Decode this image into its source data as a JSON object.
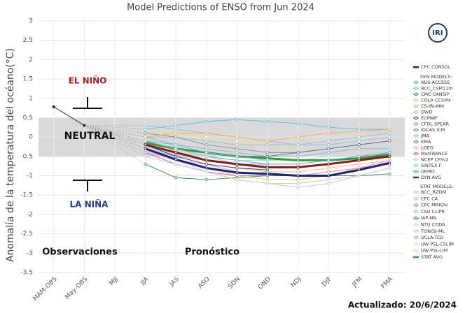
{
  "chart_data": {
    "type": "line",
    "title": "Model Predictions of ENSO from Jun 2024",
    "y_label": "Anomalía  de la temperatura del océano(°C)",
    "categories": [
      "MAM-OBS",
      "May-OBS",
      "MJJ",
      "JJA",
      "JAS",
      "ASO",
      "SON",
      "OND",
      "NDJ",
      "DJF",
      "JFM",
      "FMA"
    ],
    "ylim": [
      -3.5,
      3
    ],
    "yticks": [
      -3.5,
      -3,
      -2.5,
      -2,
      -1.5,
      -1,
      -0.5,
      0,
      0.5,
      1,
      1.5,
      2,
      2.5,
      3
    ],
    "grid": true,
    "neutral_band": [
      -0.5,
      0.5
    ],
    "observed": {
      "color": "#333333",
      "values": [
        0.78,
        0.3,
        null,
        null,
        null,
        null,
        null,
        null,
        null,
        null,
        null,
        null
      ]
    },
    "series": [
      {
        "name": "CPC CONSOL",
        "color": "#1a237e",
        "values": [
          null,
          null,
          null,
          -0.3,
          -0.58,
          -0.8,
          -0.92,
          -0.95,
          -1.0,
          -1.0,
          -0.85,
          -0.67
        ]
      }
    ],
    "dyn_models": {
      "label": "DYN MODELS:",
      "series": [
        {
          "name": "AUS-ACCESS",
          "color": "#5b9bd5",
          "values": [
            null,
            null,
            null,
            -0.1,
            -0.3,
            -0.5,
            -0.6,
            -0.7,
            -0.7,
            -0.6,
            -0.5,
            -0.4
          ]
        },
        {
          "name": "BCC_CSM11m",
          "color": "#4ec3e0",
          "values": [
            null,
            null,
            null,
            0.2,
            0.3,
            0.4,
            0.45,
            0.4,
            0.35,
            0.25,
            0.2,
            0.2
          ]
        },
        {
          "name": "CMC CANSIP",
          "color": "#2e7d32",
          "values": [
            null,
            null,
            null,
            -0.2,
            -0.4,
            -0.6,
            -0.7,
            -0.8,
            -0.8,
            -0.7,
            -0.6,
            -0.5
          ]
        },
        {
          "name": "COLA CCSM4",
          "color": "#f4c542",
          "values": [
            null,
            null,
            null,
            -0.3,
            -0.6,
            -0.8,
            -1.0,
            -1.1,
            -1.1,
            -1.0,
            -0.8,
            -0.6
          ]
        },
        {
          "name": "CS-IRI-MM",
          "color": "#f48fb1",
          "values": [
            null,
            null,
            null,
            -0.2,
            -0.5,
            -0.7,
            -0.9,
            -1.0,
            -1.0,
            -0.9,
            -0.8,
            -0.6
          ]
        },
        {
          "name": "DWD",
          "color": "#aab7c4",
          "values": [
            null,
            null,
            null,
            0.0,
            0.0,
            -0.1,
            -0.2,
            -0.2,
            -0.2,
            -0.1,
            0.0,
            0.1
          ]
        },
        {
          "name": "ECMWF",
          "color": "#1f3a93",
          "values": [
            null,
            null,
            null,
            -0.2,
            -0.5,
            -0.7,
            -0.8,
            -0.85,
            null,
            null,
            null,
            null
          ]
        },
        {
          "name": "CFDL SPEAR",
          "color": "#7f8c8d",
          "values": [
            null,
            null,
            null,
            0.1,
            0.0,
            -0.2,
            -0.3,
            -0.4,
            -0.4,
            -0.3,
            -0.2,
            -0.1
          ]
        },
        {
          "name": "IOCAS ICM",
          "color": "#5d6d7e",
          "values": [
            null,
            null,
            null,
            -0.1,
            -0.3,
            -0.4,
            -0.5,
            -0.5,
            -0.4,
            -0.3,
            -0.2,
            -0.1
          ]
        },
        {
          "name": "JMA",
          "color": "#6cc3d5",
          "values": [
            null,
            null,
            null,
            0.0,
            -0.2,
            -0.4,
            -0.5,
            -0.6,
            null,
            null,
            null,
            null
          ]
        },
        {
          "name": "KMA",
          "color": "#2e8b57",
          "values": [
            null,
            null,
            null,
            -0.7,
            -1.05,
            -1.1,
            -1.05,
            -1.0,
            -1.0,
            -1.0,
            -1.0,
            -0.95
          ]
        },
        {
          "name": "LDEO",
          "color": "#f5b041",
          "values": [
            null,
            null,
            null,
            0.0,
            0.1,
            0.1,
            0.0,
            -0.1,
            0.0,
            0.1,
            0.15,
            0.2
          ]
        },
        {
          "name": "MetFRANCE",
          "color": "#e74c3c",
          "values": [
            null,
            null,
            null,
            -0.2,
            -0.4,
            -0.6,
            -0.7,
            -0.8,
            null,
            null,
            null,
            null
          ]
        },
        {
          "name": "NCEP CFSv2",
          "color": "#f5b7b1",
          "values": [
            null,
            null,
            null,
            -0.3,
            -0.6,
            -0.9,
            -1.1,
            -1.2,
            -1.2,
            -1.1,
            -1.0,
            -0.8
          ]
        },
        {
          "name": "SINTEX-F",
          "color": "#76d7c4",
          "values": [
            null,
            null,
            null,
            -0.1,
            -0.3,
            -0.5,
            -0.7,
            -0.8,
            -0.8,
            -0.7,
            -0.6,
            -0.5
          ]
        },
        {
          "name": "UKMO",
          "color": "#1abc9c",
          "values": [
            null,
            null,
            null,
            -0.2,
            -0.4,
            -0.6,
            -0.7,
            -0.7,
            null,
            null,
            null,
            null
          ]
        },
        {
          "name": "DYN AVG",
          "color": "#8b1a1a",
          "values": [
            null,
            null,
            null,
            -0.2,
            -0.4,
            -0.6,
            -0.7,
            -0.78,
            -0.78,
            -0.7,
            -0.6,
            -0.5
          ]
        }
      ]
    },
    "stat_models": {
      "label": "STAT MODELS:",
      "series": [
        {
          "name": "BCC_RZDM",
          "color": "#f0b27a",
          "values": [
            null,
            null,
            null,
            -0.3,
            -0.5,
            -0.7,
            -0.8,
            -0.9,
            -0.9,
            -0.8,
            -0.7,
            -0.6
          ]
        },
        {
          "name": "CPC CA",
          "color": "#e6b0aa",
          "values": [
            null,
            null,
            null,
            -0.4,
            -0.6,
            -0.7,
            -0.8,
            -0.8,
            -0.8,
            -0.7,
            -0.6,
            -0.5
          ]
        },
        {
          "name": "CPC MRKOV",
          "color": "#a569bd",
          "values": [
            null,
            null,
            null,
            -0.4,
            -0.7,
            -0.9,
            -1.0,
            -1.0,
            -1.0,
            -0.9,
            -0.8,
            -0.7
          ]
        },
        {
          "name": "CSU CLIPR",
          "color": "#85c1e9",
          "values": [
            null,
            null,
            null,
            0.3,
            0.2,
            0.1,
            0.0,
            -0.1,
            -0.2,
            -0.2,
            -0.1,
            0.0
          ]
        },
        {
          "name": "IAP-NN",
          "color": "#1f618d",
          "values": [
            null,
            null,
            null,
            -0.3,
            -0.5,
            -0.6,
            -0.7,
            -0.8,
            -0.8,
            -0.7,
            -0.6,
            -0.5
          ]
        },
        {
          "name": "NTU CODA",
          "color": "#aed6f1",
          "values": [
            null,
            null,
            null,
            -0.2,
            -0.4,
            -0.5,
            -0.6,
            -0.6,
            -0.6,
            -0.5,
            -0.5,
            -0.4
          ]
        },
        {
          "name": "TONGJI-ML",
          "color": "#a9cce3",
          "values": [
            null,
            null,
            null,
            -0.5,
            -0.7,
            -0.9,
            -1.1,
            -1.2,
            -1.3,
            -1.2,
            -1.0,
            -0.8
          ]
        },
        {
          "name": "UCLA-TCD",
          "color": "#7fb3d5",
          "values": [
            null,
            null,
            null,
            -0.1,
            -0.2,
            -0.3,
            -0.4,
            -0.5,
            -0.5,
            -0.4,
            -0.3,
            -0.3
          ]
        },
        {
          "name": "UW PSL-CSLIM",
          "color": "#f7dc6f",
          "values": [
            null,
            null,
            null,
            0.2,
            0.1,
            0.0,
            -0.1,
            -0.2,
            -0.2,
            -0.1,
            0.0,
            0.1
          ]
        },
        {
          "name": "UW PSL-LIM",
          "color": "#d7bde2",
          "values": [
            null,
            null,
            null,
            -0.3,
            -0.5,
            -0.6,
            -0.7,
            -0.7,
            -0.7,
            -0.6,
            -0.5,
            -0.4
          ]
        },
        {
          "name": "STAT AVG",
          "color": "#2e9e2e",
          "values": [
            null,
            null,
            null,
            -0.15,
            -0.3,
            -0.4,
            -0.5,
            -0.55,
            -0.6,
            -0.6,
            -0.55,
            -0.45
          ]
        }
      ]
    },
    "annotations": {
      "el_nino": "EL NIÑO",
      "neutral": "NEUTRAL",
      "la_nina": "LA NIÑA",
      "observations": "Observaciones",
      "forecast": "Pronóstico",
      "updated": "Actualizado: 20/6/2024",
      "logo": "IRI"
    }
  }
}
